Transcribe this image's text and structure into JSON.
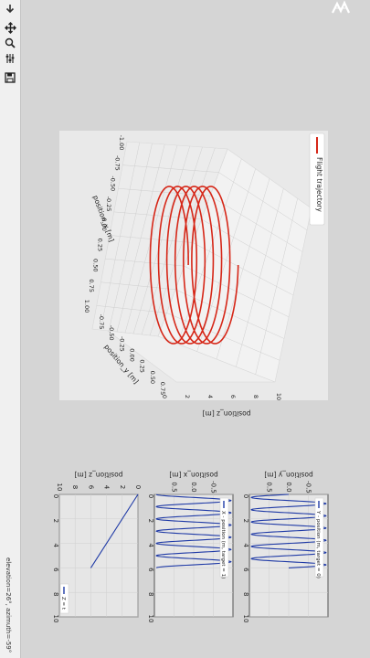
{
  "toolbar": {
    "items": [
      {
        "name": "home-back-icon",
        "label": "back"
      },
      {
        "name": "pan-icon",
        "label": "pan"
      },
      {
        "name": "zoom-icon",
        "label": "zoom"
      },
      {
        "name": "configure-subplots-icon",
        "label": "configure"
      },
      {
        "name": "save-icon",
        "label": "save"
      }
    ],
    "status": "elevation=26°, azimuth=-59°"
  },
  "colors": {
    "trajectory": "#d62718",
    "series": "#1f3aa6",
    "pane": "#f2f2f2",
    "grid": "#cfcfcf"
  },
  "chart_data": [
    {
      "type": "line",
      "projection": "3d",
      "legend": [
        "Flight trajectory"
      ],
      "legend_loc": "upper right",
      "xlabel": "position_x [m]",
      "ylabel": "position_y [m]",
      "zlabel": "position_z [m]",
      "xlim": [
        -1.0,
        1.0
      ],
      "ylim": [
        -1.0,
        1.0
      ],
      "zlim": [
        0,
        10
      ],
      "x_ticks": [
        "-1.00",
        "-0.75",
        "-0.50",
        "-0.25",
        "0.00",
        "0.25",
        "0.50",
        "0.75",
        "1.00"
      ],
      "y_ticks": [
        "-0.75",
        "-0.50",
        "-0.25",
        "0.00",
        "0.25",
        "0.50",
        "0.75"
      ],
      "z_ticks": [
        "0",
        "2",
        "4",
        "6",
        "8",
        "10"
      ],
      "trajectory": {
        "radius": 1.0,
        "turns": 6,
        "z_start": 0,
        "z_end": 6
      },
      "series": [
        {
          "name": "Flight trajectory"
        }
      ]
    },
    {
      "type": "line",
      "title": "position_y [m]",
      "legend": [
        "Y - position (m, target = 0)"
      ],
      "xlim": [
        0,
        10
      ],
      "ylim": [
        -1,
        1
      ],
      "x_ticks": [
        "0",
        "2",
        "4",
        "6",
        "8",
        "10"
      ],
      "y_ticks": [
        "-0.5",
        "0.0",
        "0.5"
      ],
      "series": [
        {
          "name": "Y - position (m, target = 0)",
          "amplitude": 1,
          "period": 1,
          "t_end": 6,
          "phase": "sin"
        }
      ]
    },
    {
      "type": "line",
      "title": "position_x [m]",
      "legend": [
        "X - position (m, target = 1)"
      ],
      "xlim": [
        0,
        10
      ],
      "ylim": [
        -1,
        1
      ],
      "x_ticks": [
        "0",
        "2",
        "4",
        "6",
        "8",
        "10"
      ],
      "y_ticks": [
        "-0.5",
        "0.0",
        "0.5"
      ],
      "series": [
        {
          "name": "X - position (m, target = 1)",
          "amplitude": 1,
          "period": 1,
          "t_end": 6,
          "phase": "cos"
        }
      ]
    },
    {
      "type": "line",
      "title": "position_z [m]",
      "legend": [
        "Z = t"
      ],
      "xlim": [
        0,
        10
      ],
      "ylim": [
        0,
        10
      ],
      "x_ticks": [
        "0",
        "2",
        "4",
        "6",
        "8",
        "10"
      ],
      "y_ticks": [
        "0",
        "2",
        "4",
        "6",
        "8",
        "10"
      ],
      "series": [
        {
          "name": "Z = t",
          "x": [
            0,
            6
          ],
          "y": [
            0,
            6
          ]
        }
      ]
    }
  ]
}
